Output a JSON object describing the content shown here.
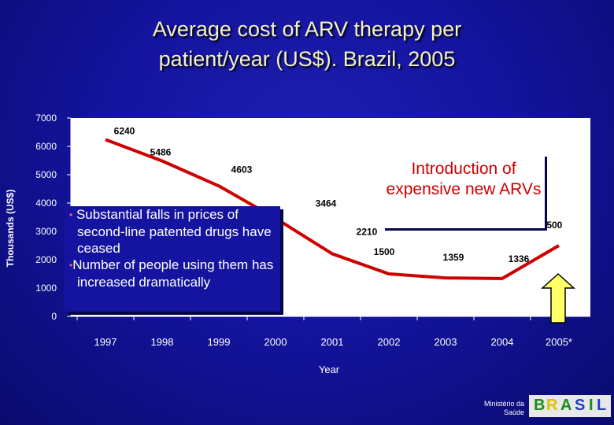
{
  "slide": {
    "title_line1": "Average cost of ARV therapy per",
    "title_line2": "patient/year (US$). Brazil, 2005"
  },
  "chart_data": {
    "type": "line",
    "title": "Average cost of ARV therapy per patient/year (US$). Brazil, 2005",
    "xlabel": "Year",
    "ylabel": "Thousands (US$)",
    "ylim": [
      0,
      7000
    ],
    "yticks": [
      "0",
      "1000",
      "2000",
      "3000",
      "4000",
      "5000",
      "6000",
      "7000"
    ],
    "categories": [
      "1997",
      "1998",
      "1999",
      "2000",
      "2001",
      "2002",
      "2003",
      "2004",
      "2005*"
    ],
    "series": [
      {
        "values": [
          6240,
          5486,
          4603,
          3464,
          2210,
          1500,
          1359,
          1336,
          2500
        ],
        "data_labels": [
          "6240",
          "5486",
          "4603",
          "3464",
          "2210",
          "1500",
          "1359",
          "1336",
          "2500"
        ],
        "color": "#cc0000"
      }
    ],
    "grid": false,
    "background": "#ffffff",
    "line_color": "#cc0000",
    "arrow_color": "#ffff66"
  },
  "annotations": {
    "bullet1": "Substantial falls in prices of second-line patented drugs have ceased",
    "bullet2": "Number of people using them has increased dramatically",
    "intro": "Introduction of expensive new ARVs"
  },
  "logo": {
    "ministry_line1": "Ministério da",
    "ministry_line2": "Saúde",
    "wordmark": "BRASIL"
  }
}
